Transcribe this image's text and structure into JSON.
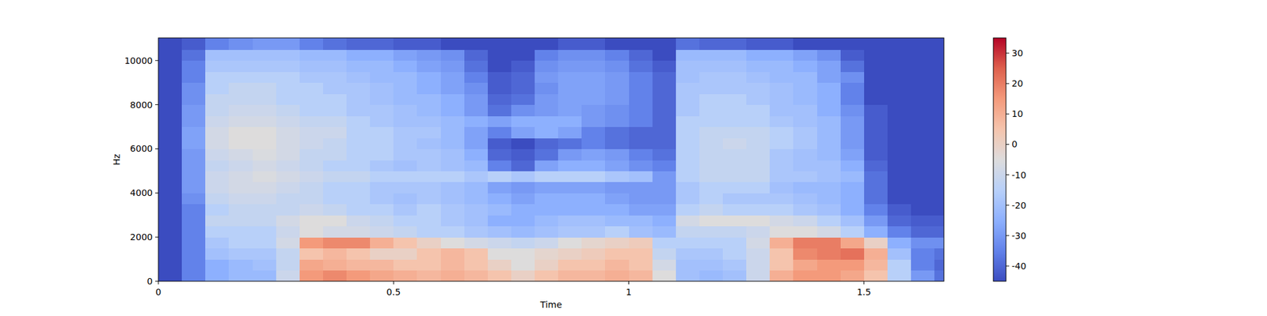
{
  "chart_data": {
    "type": "heatmap",
    "x_label": "Time",
    "y_label": "Hz",
    "xlim": [
      0,
      1.67
    ],
    "xticks": [
      0,
      0.5,
      1,
      1.5
    ],
    "ylim": [
      0,
      11025
    ],
    "yticks": [
      0,
      2000,
      4000,
      6000,
      8000,
      10000
    ],
    "x": [
      0,
      0.05,
      0.1,
      0.15,
      0.2,
      0.25,
      0.3,
      0.35,
      0.4,
      0.45,
      0.5,
      0.55,
      0.6,
      0.65,
      0.7,
      0.75,
      0.8,
      0.85,
      0.9,
      0.95,
      1.0,
      1.05,
      1.1,
      1.15,
      1.2,
      1.25,
      1.3,
      1.35,
      1.4,
      1.45,
      1.5,
      1.55,
      1.6,
      1.65
    ],
    "y": [
      0,
      500,
      1000,
      1500,
      2000,
      2500,
      3000,
      3500,
      4000,
      4500,
      5000,
      5500,
      6000,
      6500,
      7000,
      7500,
      8000,
      8500,
      9000,
      9500,
      10000,
      10500
    ],
    "cells": [
      [
        -45,
        -35,
        -25,
        -22,
        -22,
        -10,
        15,
        18,
        15,
        12,
        10,
        8,
        10,
        8,
        5,
        0,
        5,
        8,
        8,
        10,
        8,
        -5,
        -20,
        -22,
        -20,
        -10,
        10,
        15,
        15,
        12,
        5,
        -15,
        -30,
        -38
      ],
      [
        -45,
        -35,
        -25,
        -22,
        -20,
        -12,
        12,
        10,
        8,
        8,
        5,
        5,
        8,
        5,
        0,
        -5,
        0,
        5,
        5,
        8,
        5,
        -8,
        -20,
        -20,
        -18,
        -10,
        5,
        12,
        15,
        15,
        8,
        -15,
        -35,
        -40
      ],
      [
        -45,
        -35,
        -20,
        -18,
        -18,
        -12,
        5,
        8,
        5,
        0,
        0,
        5,
        8,
        5,
        -5,
        -5,
        -2,
        0,
        2,
        5,
        5,
        -12,
        -18,
        -18,
        -15,
        -10,
        5,
        18,
        20,
        22,
        10,
        -20,
        -35,
        -38
      ],
      [
        -45,
        -35,
        -18,
        -15,
        -15,
        -8,
        15,
        18,
        18,
        10,
        5,
        0,
        -5,
        -8,
        -10,
        -12,
        -10,
        -5,
        -2,
        0,
        2,
        -15,
        -15,
        -15,
        -15,
        -8,
        10,
        20,
        20,
        12,
        0,
        -25,
        -32,
        -32
      ],
      [
        -45,
        -35,
        -15,
        -15,
        -15,
        -10,
        -5,
        -8,
        -8,
        -10,
        -12,
        -15,
        -15,
        -18,
        -20,
        -22,
        -20,
        -18,
        -18,
        -15,
        -20,
        -22,
        -12,
        -12,
        -12,
        -10,
        -5,
        -5,
        -8,
        -15,
        -25,
        -35,
        -40,
        -40
      ],
      [
        -45,
        -35,
        -12,
        -12,
        -12,
        -8,
        -5,
        -5,
        -10,
        -12,
        -15,
        -15,
        -18,
        -20,
        -25,
        -25,
        -22,
        -20,
        -20,
        -22,
        -22,
        -25,
        -8,
        -5,
        -5,
        -5,
        -8,
        -10,
        -15,
        -20,
        -30,
        -40,
        -42,
        -42
      ],
      [
        -45,
        -35,
        -15,
        -12,
        -12,
        -12,
        -10,
        -12,
        -15,
        -15,
        -18,
        -15,
        -18,
        -20,
        -22,
        -25,
        -25,
        -25,
        -25,
        -25,
        -28,
        -28,
        -15,
        -12,
        -15,
        -15,
        -15,
        -18,
        -20,
        -25,
        -35,
        -42,
        -45,
        -45
      ],
      [
        -45,
        -32,
        -12,
        -10,
        -10,
        -12,
        -12,
        -15,
        -15,
        -18,
        -20,
        -18,
        -20,
        -22,
        -25,
        -28,
        -25,
        -25,
        -25,
        -28,
        -30,
        -30,
        -18,
        -15,
        -18,
        -18,
        -18,
        -20,
        -22,
        -25,
        -38,
        -45,
        -45,
        -45
      ],
      [
        -45,
        -30,
        -10,
        -8,
        -8,
        -10,
        -12,
        -15,
        -15,
        -18,
        -18,
        -18,
        -20,
        -22,
        -28,
        -30,
        -28,
        -28,
        -28,
        -30,
        -30,
        -30,
        -18,
        -15,
        -15,
        -15,
        -20,
        -22,
        -22,
        -25,
        -38,
        -45,
        -45,
        -45
      ],
      [
        -45,
        -30,
        -10,
        -8,
        -6,
        -8,
        -10,
        -12,
        -12,
        -15,
        -15,
        -15,
        -15,
        -18,
        -15,
        -18,
        -15,
        -15,
        -15,
        -18,
        -20,
        -30,
        -15,
        -12,
        -12,
        -12,
        -18,
        -18,
        -20,
        -22,
        -38,
        -45,
        -45,
        -45
      ],
      [
        -45,
        -30,
        -12,
        -10,
        -8,
        -10,
        -12,
        -15,
        -15,
        -18,
        -20,
        -18,
        -20,
        -22,
        -35,
        -40,
        -28,
        -25,
        -25,
        -28,
        -32,
        -35,
        -15,
        -12,
        -12,
        -12,
        -18,
        -20,
        -20,
        -25,
        -40,
        -45,
        -45,
        -45
      ],
      [
        -45,
        -30,
        -10,
        -8,
        -6,
        -8,
        -12,
        -12,
        -15,
        -15,
        -18,
        -18,
        -20,
        -25,
        -40,
        -42,
        -38,
        -30,
        -28,
        -30,
        -35,
        -38,
        -15,
        -12,
        -12,
        -12,
        -18,
        -20,
        -22,
        -28,
        -42,
        -45,
        -45,
        -45
      ],
      [
        -45,
        -28,
        -8,
        -5,
        -5,
        -8,
        -10,
        -12,
        -15,
        -15,
        -18,
        -20,
        -22,
        -28,
        -42,
        -45,
        -40,
        -38,
        -35,
        -38,
        -40,
        -40,
        -15,
        -12,
        -10,
        -12,
        -15,
        -18,
        -22,
        -30,
        -42,
        -45,
        -45,
        -45
      ],
      [
        -45,
        -28,
        -8,
        -5,
        -5,
        -8,
        -10,
        -10,
        -15,
        -15,
        -18,
        -18,
        -22,
        -28,
        -35,
        -28,
        -25,
        -28,
        -35,
        -38,
        -40,
        -40,
        -15,
        -12,
        -12,
        -12,
        -15,
        -18,
        -22,
        -30,
        -42,
        -45,
        -45,
        -45
      ],
      [
        -45,
        -30,
        -10,
        -8,
        -8,
        -10,
        -12,
        -12,
        -15,
        -18,
        -20,
        -20,
        -22,
        -25,
        -28,
        -25,
        -25,
        -25,
        -30,
        -32,
        -35,
        -40,
        -15,
        -15,
        -15,
        -15,
        -18,
        -20,
        -22,
        -30,
        -42,
        -45,
        -45,
        -45
      ],
      [
        -45,
        -30,
        -12,
        -10,
        -10,
        -12,
        -15,
        -15,
        -18,
        -18,
        -20,
        -22,
        -25,
        -30,
        -38,
        -32,
        -30,
        -28,
        -30,
        -32,
        -35,
        -40,
        -18,
        -15,
        -15,
        -15,
        -20,
        -20,
        -25,
        -32,
        -42,
        -45,
        -45,
        -45
      ],
      [
        -45,
        -32,
        -12,
        -12,
        -12,
        -15,
        -15,
        -15,
        -18,
        -20,
        -22,
        -22,
        -25,
        -30,
        -40,
        -38,
        -30,
        -28,
        -28,
        -30,
        -35,
        -40,
        -18,
        -15,
        -15,
        -18,
        -20,
        -22,
        -25,
        -35,
        -45,
        -45,
        -45,
        -45
      ],
      [
        -45,
        -32,
        -15,
        -12,
        -12,
        -15,
        -15,
        -18,
        -18,
        -20,
        -22,
        -25,
        -28,
        -32,
        -42,
        -40,
        -32,
        -28,
        -28,
        -30,
        -35,
        -40,
        -18,
        -18,
        -18,
        -18,
        -20,
        -22,
        -25,
        -35,
        -45,
        -45,
        -45,
        -45
      ],
      [
        -45,
        -35,
        -15,
        -15,
        -15,
        -15,
        -18,
        -18,
        -20,
        -22,
        -22,
        -25,
        -28,
        -35,
        -42,
        -40,
        -30,
        -28,
        -28,
        -30,
        -35,
        -40,
        -20,
        -18,
        -18,
        -20,
        -22,
        -22,
        -28,
        -32,
        -45,
        -45,
        -45,
        -45
      ],
      [
        -45,
        -35,
        -18,
        -18,
        -18,
        -18,
        -20,
        -20,
        -22,
        -22,
        -25,
        -28,
        -30,
        -38,
        -45,
        -42,
        -32,
        -30,
        -30,
        -32,
        -38,
        -42,
        -20,
        -20,
        -20,
        -22,
        -22,
        -25,
        -28,
        -38,
        -45,
        -45,
        -45,
        -45
      ],
      [
        -45,
        -38,
        -20,
        -20,
        -20,
        -20,
        -22,
        -22,
        -25,
        -25,
        -28,
        -30,
        -32,
        -40,
        -45,
        -45,
        -35,
        -32,
        -32,
        -35,
        -40,
        -45,
        -22,
        -22,
        -22,
        -25,
        -25,
        -28,
        -32,
        -42,
        -45,
        -45,
        -45,
        -45
      ],
      [
        -45,
        -42,
        -35,
        -32,
        -30,
        -30,
        -35,
        -38,
        -40,
        -40,
        -42,
        -42,
        -45,
        -45,
        -45,
        -45,
        -45,
        -42,
        -42,
        -45,
        -45,
        -45,
        -38,
        -40,
        -40,
        -42,
        -42,
        -45,
        -45,
        -45,
        -45,
        -45,
        -45,
        -45
      ]
    ],
    "color_range": [
      -45,
      35
    ],
    "color_ticks": [
      -40,
      -30,
      -20,
      -10,
      0,
      10,
      20,
      30
    ]
  }
}
